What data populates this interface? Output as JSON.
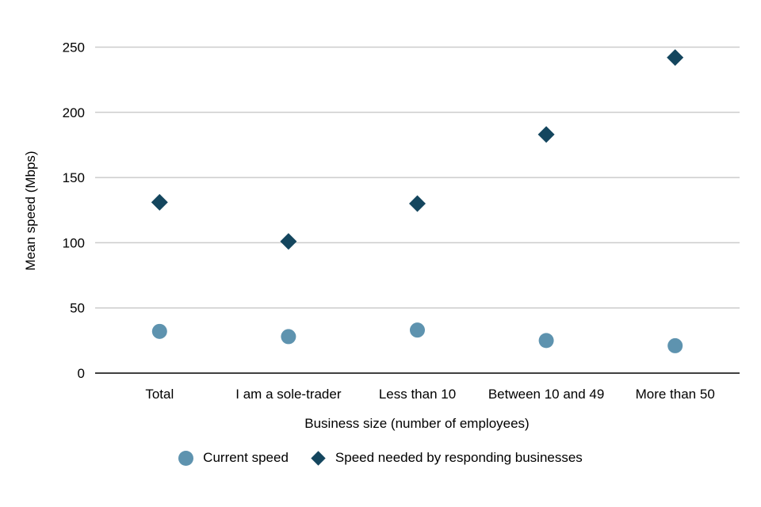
{
  "chart_data": {
    "type": "scatter",
    "title": "",
    "xlabel": "Business size (number of employees)",
    "ylabel": "Mean speed (Mbps)",
    "categories": [
      "Total",
      "I am a sole-trader",
      "Less than 10",
      "Between 10 and 49",
      "More than 50"
    ],
    "series": [
      {
        "name": "Current speed",
        "marker": "circle",
        "color": "#5e93af",
        "values": [
          32,
          28,
          33,
          25,
          21
        ]
      },
      {
        "name": "Speed needed by responding businesses",
        "marker": "diamond",
        "color": "#14465e",
        "values": [
          131,
          101,
          130,
          183,
          242
        ]
      }
    ],
    "ylim": [
      0,
      250
    ],
    "yticks": [
      0,
      50,
      100,
      150,
      200,
      250
    ],
    "grid": true,
    "legend_position": "bottom"
  },
  "colors": {
    "background": "#ffffff",
    "gridline": "#cccccc",
    "axis_line": "#404040",
    "text": "#000000"
  }
}
